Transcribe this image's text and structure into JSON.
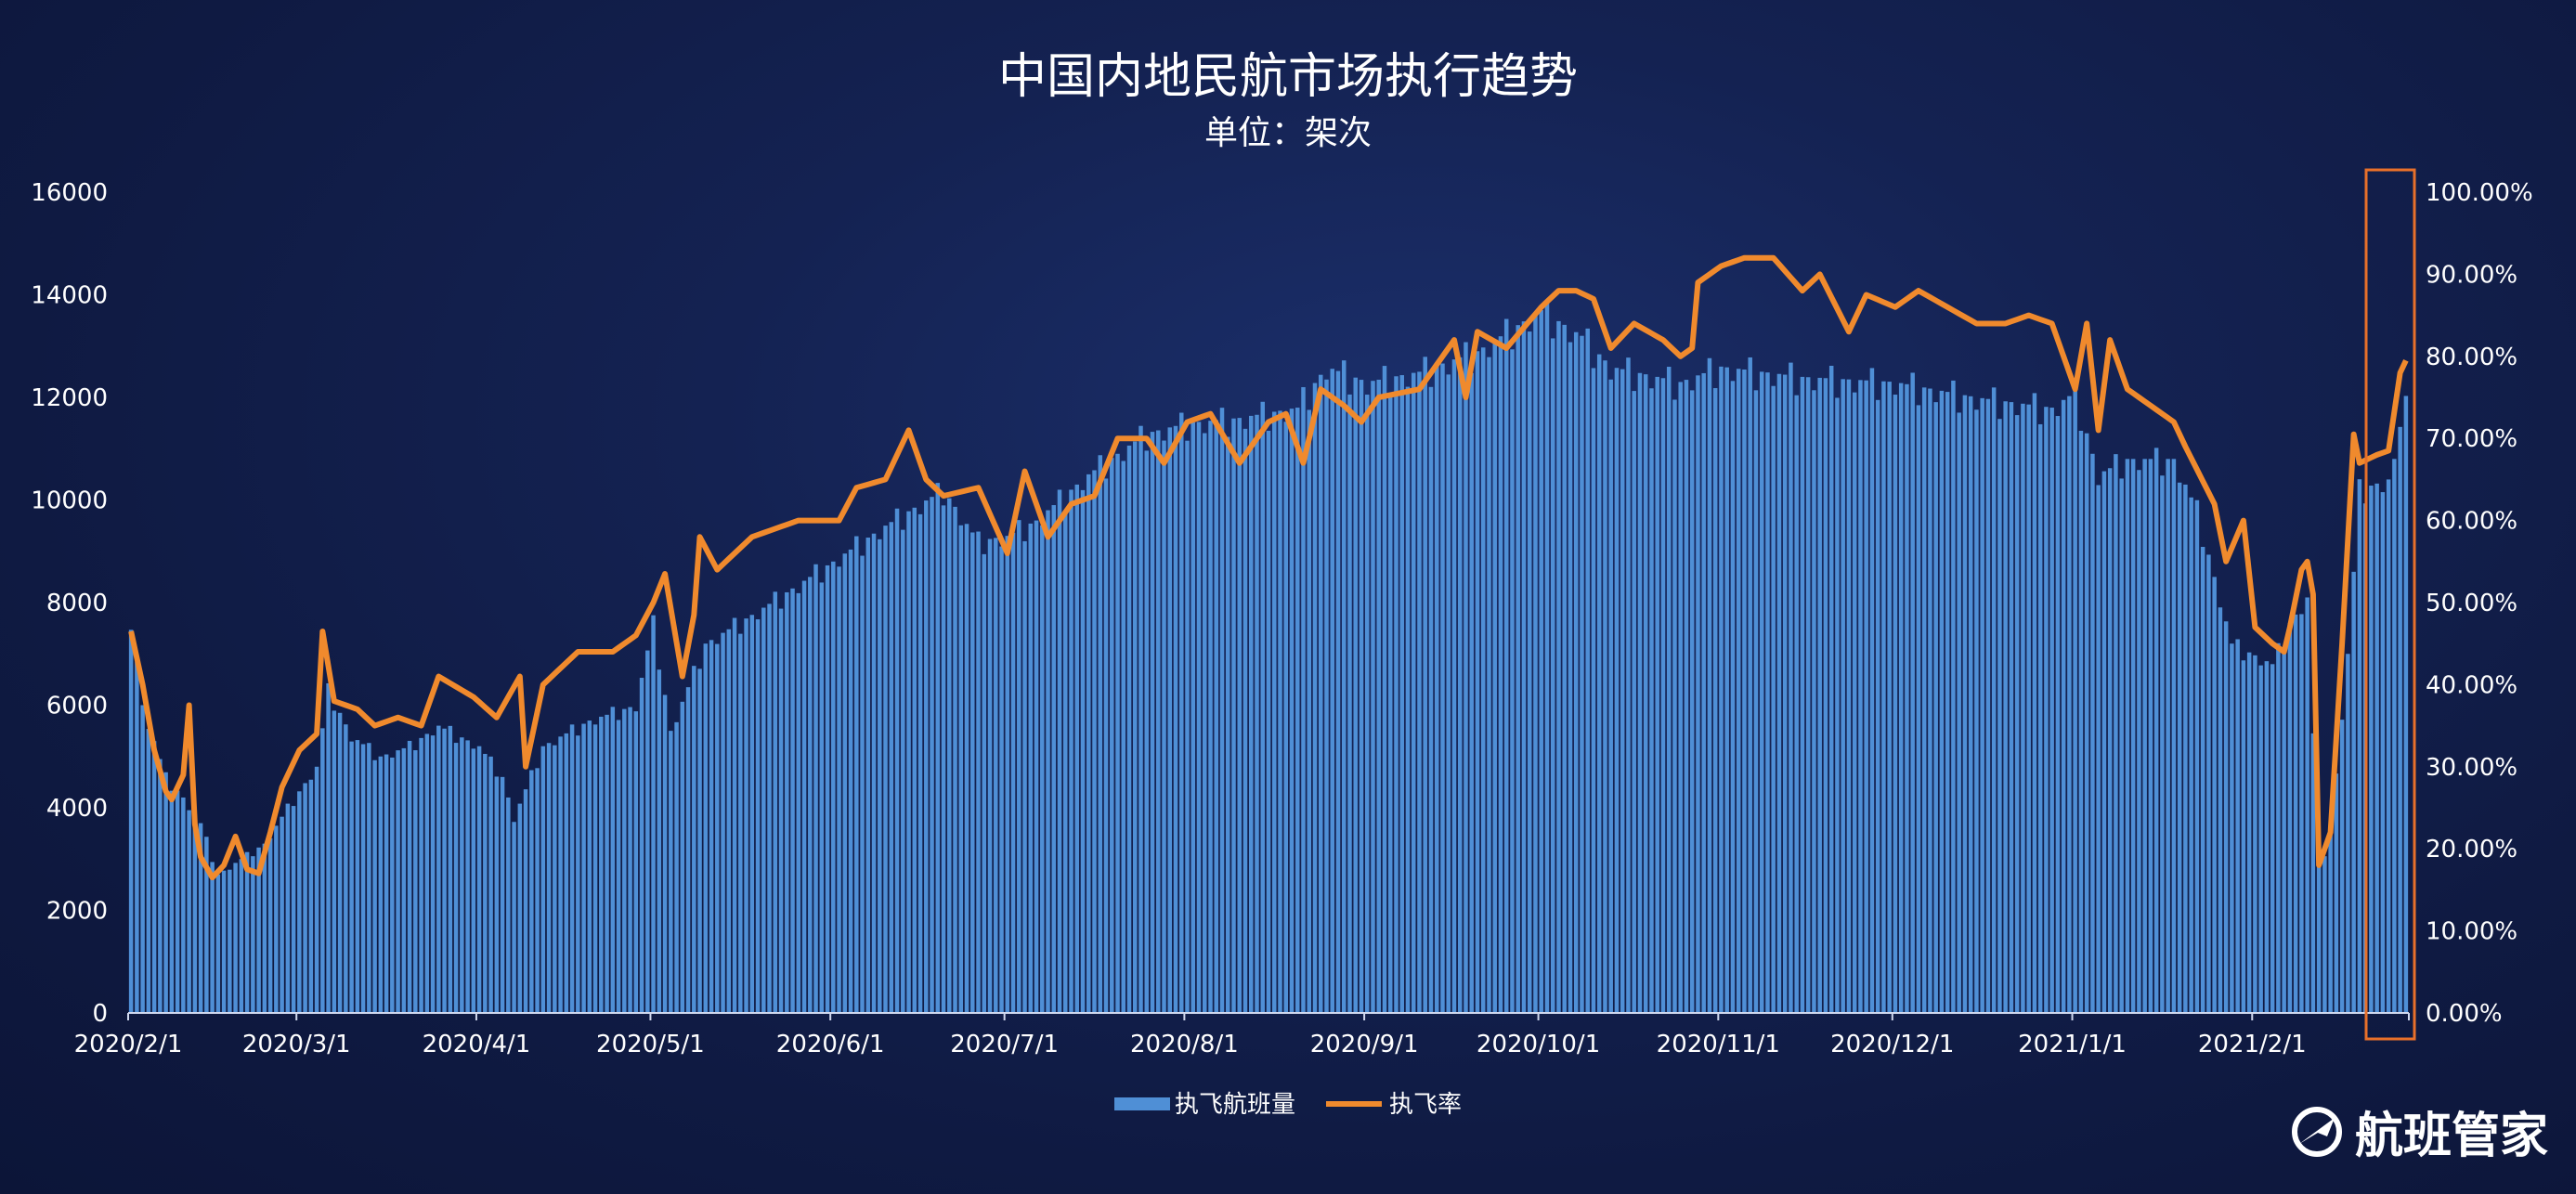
{
  "chart_data": {
    "type": "bar+line",
    "title": "中国内地民航市场执行趋势",
    "subtitle": "单位：架次",
    "y_left": {
      "min": 0,
      "max": 16000,
      "ticks": [
        "0",
        "2000",
        "4000",
        "6000",
        "8000",
        "10000",
        "12000",
        "14000",
        "16000"
      ]
    },
    "y_right": {
      "min": 0,
      "max": 100,
      "ticks": [
        "0.00%",
        "10.00%",
        "20.00%",
        "30.00%",
        "40.00%",
        "50.00%",
        "60.00%",
        "70.00%",
        "80.00%",
        "90.00%",
        "100.00%"
      ]
    },
    "x_start": "2020-02-01",
    "x_end": "2021-02-27",
    "x_tick_labels": [
      "2020/2/1",
      "2020/3/1",
      "2020/4/1",
      "2020/5/1",
      "2020/6/1",
      "2020/7/1",
      "2020/8/1",
      "2020/9/1",
      "2020/10/1",
      "2020/11/1",
      "2020/12/1",
      "2021/1/1",
      "2021/2/1"
    ],
    "series": [
      {
        "name": "执飞航班量",
        "type": "bar",
        "color": "#4f8fd6",
        "keypoints": [
          [
            "2020-02-01",
            7700
          ],
          [
            "2020-02-03",
            6000
          ],
          [
            "2020-02-07",
            4600
          ],
          [
            "2020-02-10",
            4200
          ],
          [
            "2020-02-13",
            3700
          ],
          [
            "2020-02-16",
            2700
          ],
          [
            "2020-02-20",
            3000
          ],
          [
            "2020-02-24",
            3300
          ],
          [
            "2020-02-28",
            4000
          ],
          [
            "2020-03-04",
            4800
          ],
          [
            "2020-03-06",
            6300
          ],
          [
            "2020-03-10",
            5400
          ],
          [
            "2020-03-15",
            5000
          ],
          [
            "2020-03-20",
            5200
          ],
          [
            "2020-03-25",
            5600
          ],
          [
            "2020-04-01",
            5200
          ],
          [
            "2020-04-05",
            4600
          ],
          [
            "2020-04-07",
            3800
          ],
          [
            "2020-04-12",
            5200
          ],
          [
            "2020-04-20",
            5700
          ],
          [
            "2020-04-28",
            6000
          ],
          [
            "2020-05-01",
            7600
          ],
          [
            "2020-05-04",
            5500
          ],
          [
            "2020-05-10",
            7200
          ],
          [
            "2020-05-20",
            7900
          ],
          [
            "2020-06-01",
            8800
          ],
          [
            "2020-06-10",
            9500
          ],
          [
            "2020-06-20",
            10200
          ],
          [
            "2020-06-26",
            9200
          ],
          [
            "2020-07-01",
            9300
          ],
          [
            "2020-07-06",
            9600
          ],
          [
            "2020-07-15",
            10500
          ],
          [
            "2020-07-25",
            11300
          ],
          [
            "2020-08-01",
            11500
          ],
          [
            "2020-08-10",
            11600
          ],
          [
            "2020-08-20",
            11800
          ],
          [
            "2020-08-25",
            12600
          ],
          [
            "2020-09-01",
            12300
          ],
          [
            "2020-09-10",
            12500
          ],
          [
            "2020-09-20",
            12900
          ],
          [
            "2020-10-01",
            13700
          ],
          [
            "2020-10-08",
            13200
          ],
          [
            "2020-10-13",
            12600
          ],
          [
            "2020-10-25",
            12300
          ],
          [
            "2020-11-01",
            12600
          ],
          [
            "2020-11-15",
            12400
          ],
          [
            "2020-12-01",
            12300
          ],
          [
            "2020-12-15",
            12000
          ],
          [
            "2020-12-28",
            11800
          ],
          [
            "2021-01-01",
            12100
          ],
          [
            "2021-01-05",
            10500
          ],
          [
            "2021-01-10",
            10800
          ],
          [
            "2021-01-18",
            10800
          ],
          [
            "2021-01-22",
            9800
          ],
          [
            "2021-01-28",
            7200
          ],
          [
            "2021-02-04",
            6800
          ],
          [
            "2021-02-07",
            7600
          ],
          [
            "2021-02-10",
            8100
          ],
          [
            "2021-02-12",
            2800
          ],
          [
            "2021-02-14",
            3500
          ],
          [
            "2021-02-17",
            7000
          ],
          [
            "2021-02-19",
            10200
          ],
          [
            "2021-02-24",
            10400
          ],
          [
            "2021-02-26",
            11200
          ],
          [
            "2021-02-27",
            12400
          ]
        ]
      },
      {
        "name": "执飞率",
        "type": "line",
        "color": "#f08a2d",
        "keypoints": [
          [
            "2020-02-01",
            46.5
          ],
          [
            "2020-02-03",
            40
          ],
          [
            "2020-02-05",
            32
          ],
          [
            "2020-02-07",
            27
          ],
          [
            "2020-02-08",
            26
          ],
          [
            "2020-02-10",
            29
          ],
          [
            "2020-02-11",
            37.5
          ],
          [
            "2020-02-12",
            23
          ],
          [
            "2020-02-13",
            19
          ],
          [
            "2020-02-15",
            16.5
          ],
          [
            "2020-02-17",
            18
          ],
          [
            "2020-02-19",
            21.5
          ],
          [
            "2020-02-21",
            17.5
          ],
          [
            "2020-02-23",
            17
          ],
          [
            "2020-02-25",
            22
          ],
          [
            "2020-02-27",
            27.5
          ],
          [
            "2020-03-01",
            32
          ],
          [
            "2020-03-04",
            34
          ],
          [
            "2020-03-05",
            46.5
          ],
          [
            "2020-03-07",
            38
          ],
          [
            "2020-03-11",
            37
          ],
          [
            "2020-03-14",
            35
          ],
          [
            "2020-03-18",
            36
          ],
          [
            "2020-03-22",
            35
          ],
          [
            "2020-03-25",
            41
          ],
          [
            "2020-03-31",
            38.5
          ],
          [
            "2020-04-04",
            36
          ],
          [
            "2020-04-08",
            41
          ],
          [
            "2020-04-09",
            30
          ],
          [
            "2020-04-12",
            40
          ],
          [
            "2020-04-18",
            44
          ],
          [
            "2020-04-24",
            44
          ],
          [
            "2020-04-28",
            46
          ],
          [
            "2020-05-01",
            50
          ],
          [
            "2020-05-03",
            53.5
          ],
          [
            "2020-05-06",
            41
          ],
          [
            "2020-05-08",
            48.5
          ],
          [
            "2020-05-09",
            58
          ],
          [
            "2020-05-12",
            54
          ],
          [
            "2020-05-18",
            58
          ],
          [
            "2020-05-26",
            60
          ],
          [
            "2020-06-02",
            60
          ],
          [
            "2020-06-05",
            64
          ],
          [
            "2020-06-10",
            65
          ],
          [
            "2020-06-14",
            71
          ],
          [
            "2020-06-17",
            65
          ],
          [
            "2020-06-20",
            63
          ],
          [
            "2020-06-26",
            64
          ],
          [
            "2020-07-01",
            56
          ],
          [
            "2020-07-04",
            66
          ],
          [
            "2020-07-08",
            58
          ],
          [
            "2020-07-12",
            62
          ],
          [
            "2020-07-16",
            63
          ],
          [
            "2020-07-20",
            70
          ],
          [
            "2020-07-25",
            70
          ],
          [
            "2020-07-28",
            67
          ],
          [
            "2020-08-01",
            72
          ],
          [
            "2020-08-05",
            73
          ],
          [
            "2020-08-10",
            67
          ],
          [
            "2020-08-15",
            72
          ],
          [
            "2020-08-18",
            73
          ],
          [
            "2020-08-21",
            67
          ],
          [
            "2020-08-24",
            76
          ],
          [
            "2020-08-28",
            74
          ],
          [
            "2020-08-31",
            72
          ],
          [
            "2020-09-03",
            75
          ],
          [
            "2020-09-10",
            76
          ],
          [
            "2020-09-16",
            82
          ],
          [
            "2020-09-18",
            75
          ],
          [
            "2020-09-20",
            83
          ],
          [
            "2020-09-25",
            81
          ],
          [
            "2020-10-01",
            86
          ],
          [
            "2020-10-04",
            88
          ],
          [
            "2020-10-07",
            88
          ],
          [
            "2020-10-10",
            87
          ],
          [
            "2020-10-13",
            81
          ],
          [
            "2020-10-17",
            84
          ],
          [
            "2020-10-22",
            82
          ],
          [
            "2020-10-25",
            80
          ],
          [
            "2020-10-27",
            81
          ],
          [
            "2020-10-28",
            89
          ],
          [
            "2020-11-01",
            91
          ],
          [
            "2020-11-05",
            92
          ],
          [
            "2020-11-10",
            92
          ],
          [
            "2020-11-15",
            88
          ],
          [
            "2020-11-18",
            90
          ],
          [
            "2020-11-23",
            83
          ],
          [
            "2020-11-26",
            87.5
          ],
          [
            "2020-12-01",
            86
          ],
          [
            "2020-12-05",
            88
          ],
          [
            "2020-12-10",
            86
          ],
          [
            "2020-12-15",
            84
          ],
          [
            "2020-12-20",
            84
          ],
          [
            "2020-12-24",
            85
          ],
          [
            "2020-12-28",
            84
          ],
          [
            "2021-01-01",
            76
          ],
          [
            "2021-01-03",
            84
          ],
          [
            "2021-01-05",
            71
          ],
          [
            "2021-01-07",
            82
          ],
          [
            "2021-01-10",
            76
          ],
          [
            "2021-01-14",
            74
          ],
          [
            "2021-01-18",
            72
          ],
          [
            "2021-01-20",
            69
          ],
          [
            "2021-01-25",
            62
          ],
          [
            "2021-01-27",
            55
          ],
          [
            "2021-01-30",
            60
          ],
          [
            "2021-02-01",
            47
          ],
          [
            "2021-02-04",
            45
          ],
          [
            "2021-02-06",
            44
          ],
          [
            "2021-02-07",
            47
          ],
          [
            "2021-02-09",
            54
          ],
          [
            "2021-02-10",
            55
          ],
          [
            "2021-02-11",
            51
          ],
          [
            "2021-02-12",
            18
          ],
          [
            "2021-02-14",
            22
          ],
          [
            "2021-02-16",
            45
          ],
          [
            "2021-02-18",
            70.5
          ],
          [
            "2021-02-19",
            67
          ],
          [
            "2021-02-22",
            68
          ],
          [
            "2021-02-24",
            68.5
          ],
          [
            "2021-02-26",
            78
          ],
          [
            "2021-02-27",
            79.5
          ]
        ]
      }
    ],
    "highlight_box_color": "#e8702a",
    "legend": "bottom-center",
    "grid": false
  },
  "legend_labels": {
    "bars": "执飞航班量",
    "line": "执飞率"
  },
  "logo": {
    "text": "航班管家"
  }
}
